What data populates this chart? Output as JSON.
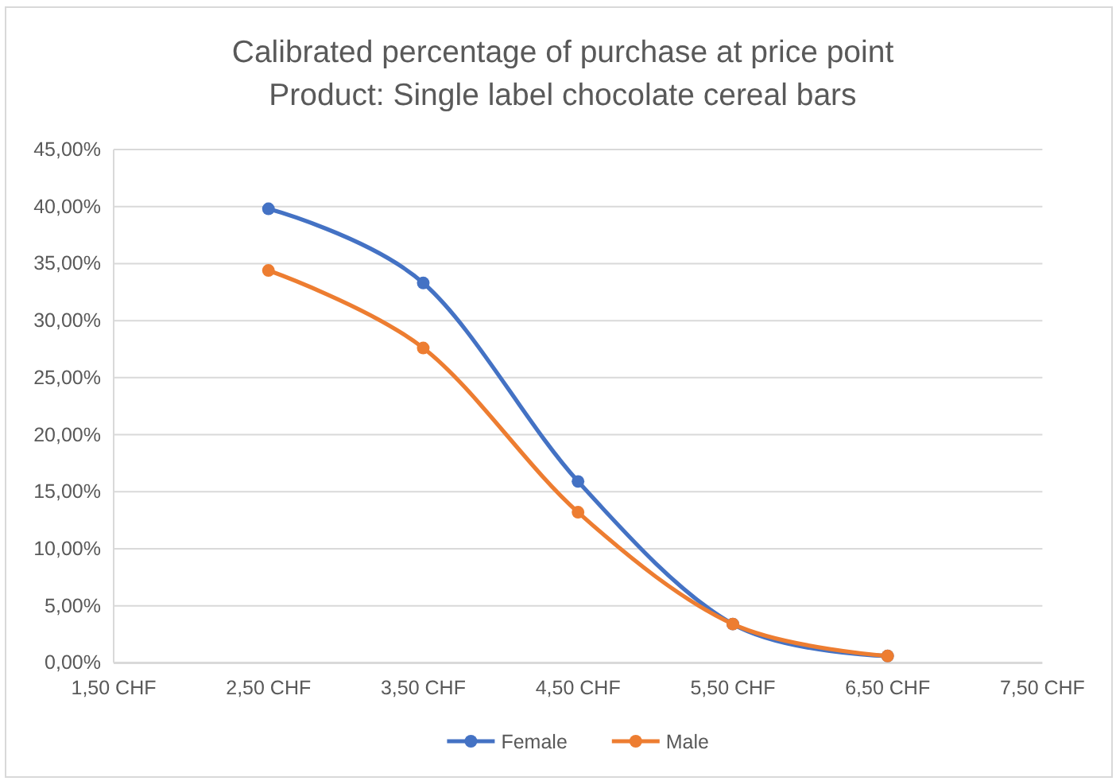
{
  "chart_data": {
    "type": "line",
    "title": "Calibrated percentage of purchase at price point\nProduct: Single label chocolate cereal bars",
    "x": [
      2.5,
      3.5,
      4.5,
      5.5,
      6.5
    ],
    "series": [
      {
        "name": "Female",
        "color": "#4472c4",
        "values": [
          39.8,
          33.3,
          15.9,
          3.4,
          0.6
        ]
      },
      {
        "name": "Male",
        "color": "#ed7d31",
        "values": [
          34.4,
          27.6,
          13.2,
          3.4,
          0.6
        ]
      }
    ],
    "xlim": [
      1.5,
      7.5
    ],
    "xticks": [
      {
        "value": 1.5,
        "label": "1,50 CHF"
      },
      {
        "value": 2.5,
        "label": "2,50 CHF"
      },
      {
        "value": 3.5,
        "label": "3,50 CHF"
      },
      {
        "value": 4.5,
        "label": "4,50 CHF"
      },
      {
        "value": 5.5,
        "label": "5,50 CHF"
      },
      {
        "value": 6.5,
        "label": "6,50 CHF"
      },
      {
        "value": 7.5,
        "label": "7,50 CHF"
      }
    ],
    "ylim": [
      0,
      45
    ],
    "yticks": [
      {
        "value": 0,
        "label": "0,00%"
      },
      {
        "value": 5,
        "label": "5,00%"
      },
      {
        "value": 10,
        "label": "10,00%"
      },
      {
        "value": 15,
        "label": "15,00%"
      },
      {
        "value": 20,
        "label": "20,00%"
      },
      {
        "value": 25,
        "label": "25,00%"
      },
      {
        "value": 30,
        "label": "30,00%"
      },
      {
        "value": 35,
        "label": "35,00%"
      },
      {
        "value": 40,
        "label": "40,00%"
      },
      {
        "value": 45,
        "label": "45,00%"
      }
    ],
    "grid": "y",
    "legend": "bottom",
    "marker": "circle",
    "line_style": "solid"
  }
}
